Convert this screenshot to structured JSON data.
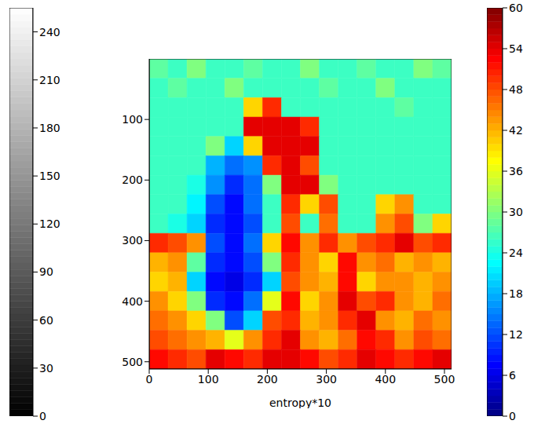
{
  "chart_data": {
    "type": "heatmap",
    "xlabel": "entropy*10",
    "xlim": [
      0,
      512
    ],
    "xticks": [
      0,
      100,
      200,
      300,
      400,
      500
    ],
    "ylim": [
      512,
      0
    ],
    "yticks": [
      100,
      200,
      300,
      400,
      500
    ],
    "grid": false,
    "cells": [
      [
        28,
        26,
        30,
        26,
        26,
        28,
        26,
        26,
        30,
        26,
        26,
        28,
        26,
        26,
        30,
        28
      ],
      [
        26,
        28,
        26,
        26,
        30,
        26,
        26,
        26,
        26,
        28,
        26,
        26,
        30,
        26,
        26,
        26
      ],
      [
        26,
        26,
        26,
        26,
        26,
        40,
        50,
        26,
        26,
        26,
        26,
        26,
        26,
        28,
        26,
        26
      ],
      [
        26,
        26,
        26,
        26,
        26,
        54,
        54,
        54,
        50,
        26,
        26,
        26,
        26,
        26,
        26,
        26
      ],
      [
        26,
        26,
        26,
        30,
        20,
        40,
        54,
        54,
        54,
        26,
        26,
        26,
        26,
        26,
        26,
        26
      ],
      [
        26,
        26,
        26,
        18,
        14,
        16,
        50,
        54,
        48,
        26,
        26,
        26,
        26,
        26,
        26,
        26
      ],
      [
        26,
        26,
        24,
        16,
        10,
        14,
        30,
        54,
        54,
        30,
        26,
        26,
        26,
        26,
        26,
        26
      ],
      [
        26,
        26,
        22,
        12,
        8,
        14,
        26,
        50,
        40,
        48,
        26,
        26,
        40,
        44,
        26,
        26
      ],
      [
        26,
        24,
        20,
        10,
        8,
        12,
        26,
        48,
        26,
        46,
        26,
        26,
        44,
        48,
        30,
        40
      ],
      [
        50,
        48,
        44,
        12,
        8,
        14,
        40,
        52,
        44,
        50,
        44,
        48,
        50,
        54,
        48,
        50
      ],
      [
        42,
        44,
        28,
        10,
        8,
        12,
        30,
        50,
        44,
        40,
        52,
        44,
        46,
        42,
        44,
        42
      ],
      [
        40,
        42,
        20,
        8,
        6,
        10,
        20,
        48,
        44,
        42,
        52,
        40,
        44,
        44,
        42,
        44
      ],
      [
        44,
        40,
        30,
        10,
        8,
        14,
        36,
        52,
        40,
        44,
        54,
        48,
        50,
        44,
        42,
        46
      ],
      [
        46,
        44,
        40,
        30,
        12,
        20,
        48,
        50,
        42,
        44,
        50,
        54,
        44,
        42,
        46,
        44
      ],
      [
        48,
        46,
        44,
        42,
        36,
        44,
        50,
        54,
        44,
        42,
        46,
        52,
        50,
        44,
        48,
        46
      ],
      [
        52,
        50,
        48,
        54,
        52,
        50,
        54,
        54,
        52,
        48,
        50,
        54,
        52,
        50,
        52,
        54
      ]
    ],
    "colorbar": {
      "range": [
        0,
        60
      ],
      "ticks": [
        0,
        6,
        12,
        18,
        24,
        30,
        36,
        42,
        48,
        54,
        60
      ]
    },
    "gray_colorbar": {
      "range": [
        0,
        255
      ],
      "ticks": [
        0,
        30,
        60,
        90,
        120,
        150,
        180,
        210,
        240
      ]
    }
  }
}
